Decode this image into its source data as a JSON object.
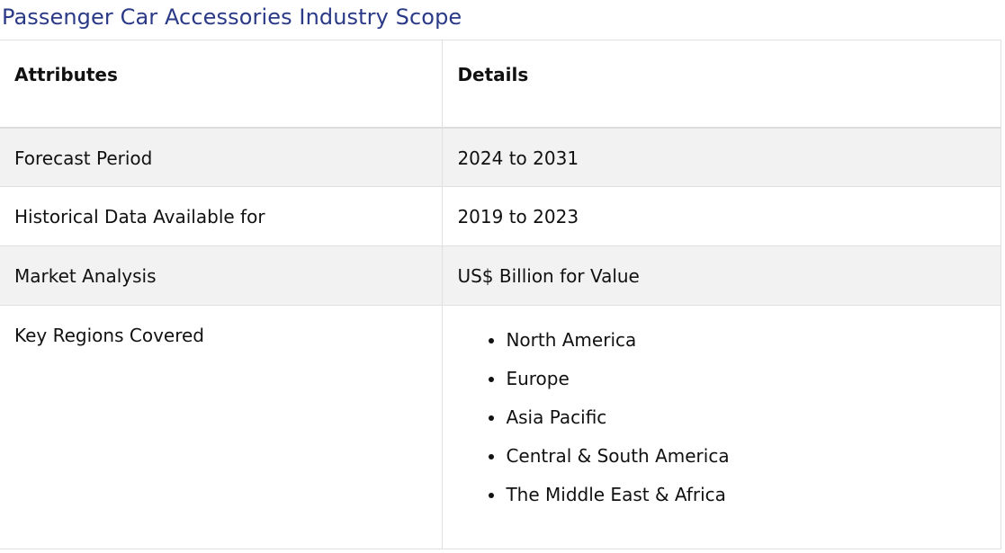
{
  "page": {
    "title": "Passenger Car Accessories Industry Scope"
  },
  "table": {
    "headers": [
      "Attributes",
      "Details"
    ],
    "rows": [
      {
        "attribute": "Forecast Period",
        "detail": "2024 to 2031"
      },
      {
        "attribute": "Historical Data Available for",
        "detail": "2019 to 2023"
      },
      {
        "attribute": "Market Analysis",
        "detail": "US$ Billion for Value"
      }
    ],
    "regions": {
      "attribute": "Key Regions Covered",
      "items": [
        "North America",
        "Europe",
        "Asia Pacific",
        "Central & South America",
        "The Middle East & Africa"
      ]
    }
  },
  "colors": {
    "title": "#2b3a87",
    "shaded_row": "#f2f2f2",
    "border": "#e0e0e0"
  }
}
